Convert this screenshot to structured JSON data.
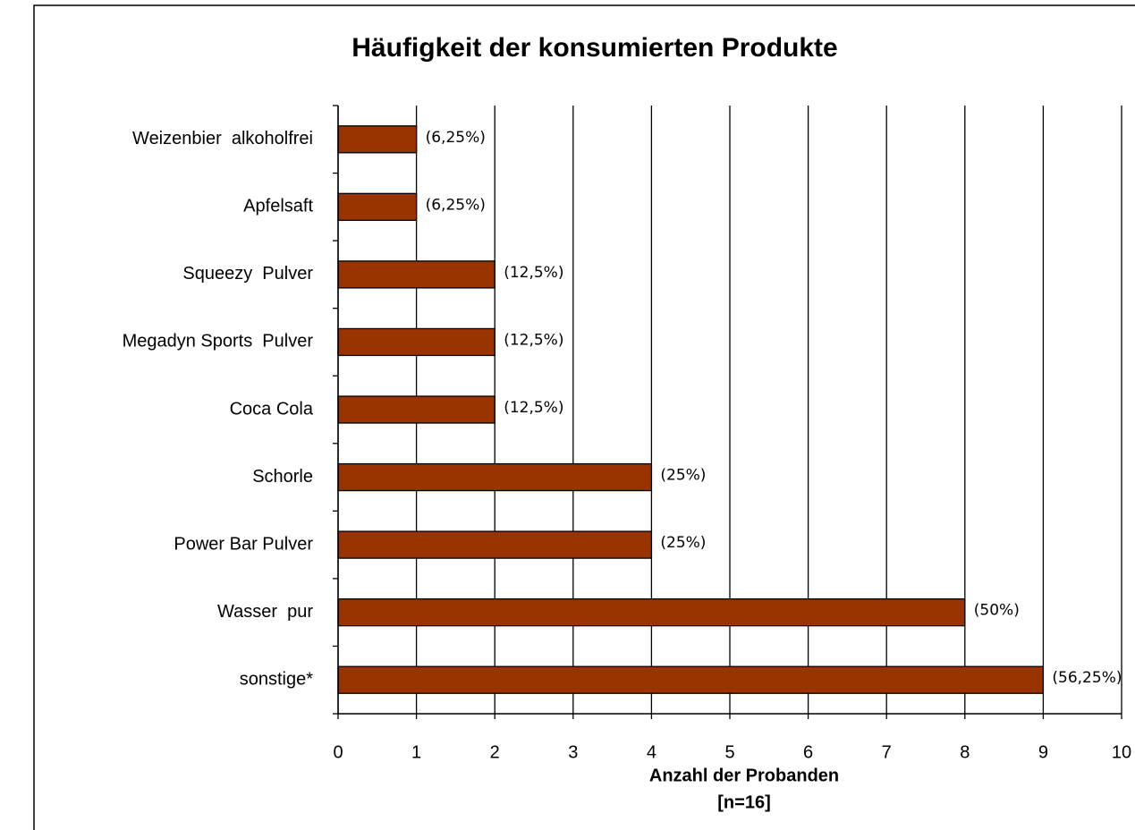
{
  "chart_data": {
    "type": "barh",
    "title": "Häufigkeit der konsumierten Produkte",
    "categories": [
      "Weizenbier  alkoholfrei",
      "Apfelsaft",
      "Squeezy  Pulver",
      "Megadyn Sports  Pulver",
      "Coca Cola",
      "Schorle",
      "Power Bar Pulver",
      "Wasser  pur",
      "sonstige*"
    ],
    "values": [
      1,
      1,
      2,
      2,
      2,
      4,
      4,
      8,
      9
    ],
    "value_labels": [
      "(6,25%)",
      "(6,25%)",
      "(12,5%)",
      "(12,5%)",
      "(12,5%)",
      "(25%)",
      "(25%)",
      "(50%)",
      "(56,25%)"
    ],
    "color": "#993300",
    "xlabel": [
      "Anzahl der Probanden",
      "[n=16]"
    ],
    "xlim": [
      0,
      10
    ],
    "xticks": [
      0,
      1,
      2,
      3,
      4,
      5,
      6,
      7,
      8,
      9,
      10
    ],
    "grid": true
  }
}
